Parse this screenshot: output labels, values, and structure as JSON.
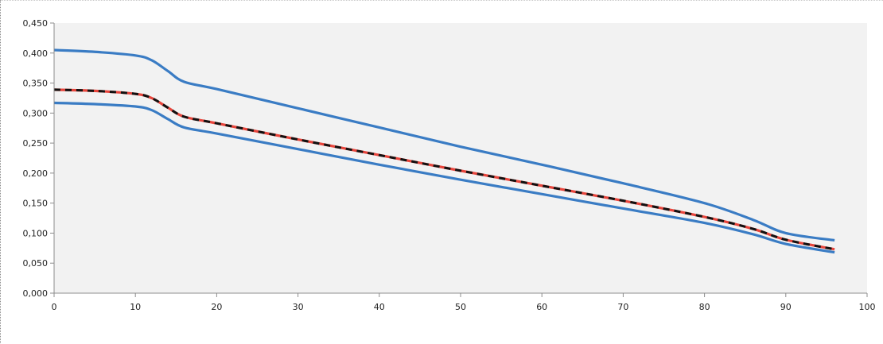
{
  "chart_data": {
    "type": "line",
    "title": "",
    "xlabel": "",
    "ylabel": "",
    "xlim": [
      0,
      100
    ],
    "ylim": [
      0,
      0.45
    ],
    "x_ticks": [
      0,
      10,
      20,
      30,
      40,
      50,
      60,
      70,
      80,
      90,
      100
    ],
    "x_tick_labels": [
      "0",
      "10",
      "20",
      "30",
      "40",
      "50",
      "60",
      "70",
      "80",
      "90",
      "100"
    ],
    "y_ticks": [
      0,
      0.05,
      0.1,
      0.15,
      0.2,
      0.25,
      0.3,
      0.35,
      0.4,
      0.45
    ],
    "y_tick_labels": [
      "0,000",
      "0,050",
      "0,100",
      "0,150",
      "0,200",
      "0,250",
      "0,300",
      "0,350",
      "0,400",
      "0,450"
    ],
    "grid": false,
    "legend": "none",
    "plot_background": "#f2f2f2",
    "series": [
      {
        "color": "#3a7cc4",
        "style": "solid",
        "x": [
          0,
          5,
          10,
          12,
          14,
          16,
          20,
          30,
          40,
          50,
          60,
          70,
          80,
          86,
          90,
          96
        ],
        "y": [
          0.405,
          0.402,
          0.396,
          0.388,
          0.37,
          0.352,
          0.34,
          0.308,
          0.276,
          0.244,
          0.214,
          0.183,
          0.15,
          0.122,
          0.1,
          0.088
        ]
      },
      {
        "color": "#3a7cc4",
        "style": "solid",
        "x": [
          0,
          5,
          10,
          12,
          14,
          16,
          20,
          30,
          40,
          50,
          60,
          70,
          80,
          86,
          90,
          96
        ],
        "y": [
          0.317,
          0.315,
          0.311,
          0.305,
          0.29,
          0.276,
          0.266,
          0.24,
          0.214,
          0.189,
          0.165,
          0.141,
          0.117,
          0.098,
          0.082,
          0.068
        ]
      },
      {
        "color": "#e8453c",
        "style": "solid",
        "x": [
          0,
          5,
          10,
          12,
          14,
          16,
          20,
          30,
          40,
          50,
          60,
          70,
          80,
          86,
          90,
          96
        ],
        "y": [
          0.339,
          0.337,
          0.332,
          0.325,
          0.309,
          0.294,
          0.283,
          0.256,
          0.23,
          0.204,
          0.179,
          0.154,
          0.127,
          0.107,
          0.089,
          0.073
        ]
      },
      {
        "color": "#111111",
        "style": "dashed",
        "x": [
          0,
          5,
          10,
          12,
          14,
          16,
          20,
          30,
          40,
          50,
          60,
          70,
          80,
          86,
          90,
          96
        ],
        "y": [
          0.339,
          0.337,
          0.332,
          0.325,
          0.309,
          0.294,
          0.283,
          0.256,
          0.23,
          0.204,
          0.179,
          0.154,
          0.127,
          0.107,
          0.089,
          0.073
        ]
      }
    ]
  }
}
